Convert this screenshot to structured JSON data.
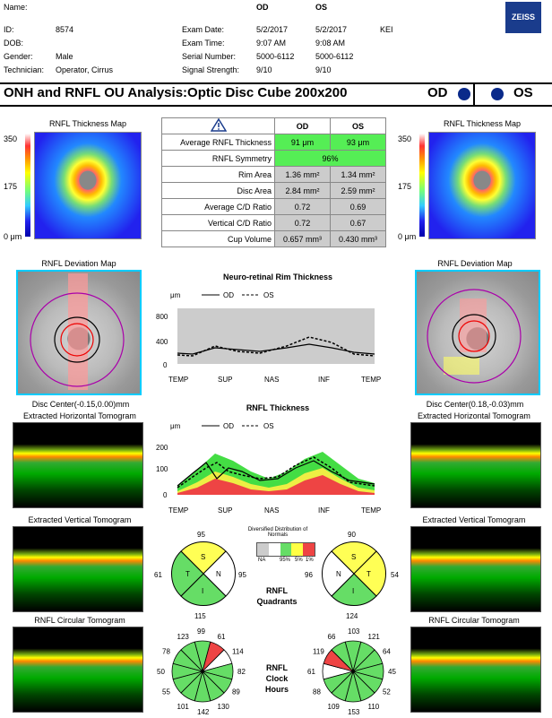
{
  "header": {
    "name_label": "Name:",
    "id_label": "ID:",
    "id_value": "8574",
    "dob_label": "DOB:",
    "gender_label": "Gender:",
    "gender_value": "Male",
    "tech_label": "Technician:",
    "tech_value": "Operator, Cirrus",
    "col_od": "OD",
    "col_os": "OS",
    "exam_date_label": "Exam Date:",
    "exam_date_od": "5/2/2017",
    "exam_date_os": "5/2/2017",
    "exam_time_label": "Exam Time:",
    "exam_time_od": "9:07 AM",
    "exam_time_os": "9:08 AM",
    "serial_label": "Serial Number:",
    "serial_od": "5000-6112",
    "serial_os": "5000-6112",
    "signal_label": "Signal Strength:",
    "signal_od": "9/10",
    "signal_os": "9/10",
    "kei": "KEI",
    "logo": "ZEISS"
  },
  "title": "ONH and RNFL OU Analysis:Optic Disc Cube 200x200",
  "od_label": "OD",
  "os_label": "OS",
  "maps": {
    "thickness_title": "RNFL Thickness Map",
    "scale_top": "350",
    "scale_mid": "175",
    "scale_bot": "0 μm",
    "deviation_title": "RNFL Deviation Map",
    "disc_center_od": "Disc Center(-0.15,0.00)mm",
    "disc_center_os": "Disc Center(0.18,-0.03)mm",
    "horiz_tomo": "Extracted Horizontal Tomogram",
    "vert_tomo": "Extracted Vertical Tomogram",
    "circ_tomo": "RNFL Circular Tomogram"
  },
  "table": {
    "head_od": "OD",
    "head_os": "OS",
    "rows": [
      {
        "label": "Average RNFL Thickness",
        "od": "91 μm",
        "os": "93 μm"
      },
      {
        "label": "RNFL Symmetry",
        "both": "96%"
      },
      {
        "label": "Rim Area",
        "od": "1.36 mm²",
        "os": "1.34 mm²"
      },
      {
        "label": "Disc Area",
        "od": "2.84 mm²",
        "os": "2.59 mm²"
      },
      {
        "label": "Average C/D Ratio",
        "od": "0.72",
        "os": "0.69"
      },
      {
        "label": "Vertical C/D Ratio",
        "od": "0.72",
        "os": "0.67"
      },
      {
        "label": "Cup Volume",
        "od": "0.657 mm³",
        "os": "0.430 mm³"
      }
    ]
  },
  "rim_chart": {
    "title": "Neuro-retinal Rim Thickness",
    "unit": "μm",
    "legend_od": "OD",
    "legend_os": "OS",
    "yticks": [
      "800",
      "400",
      "0"
    ],
    "xticks": [
      "TEMP",
      "SUP",
      "NAS",
      "INF",
      "TEMP"
    ]
  },
  "rnfl_chart": {
    "title": "RNFL Thickness",
    "unit": "μm",
    "legend_od": "OD",
    "legend_os": "OS",
    "yticks": [
      "200",
      "100",
      "0"
    ],
    "xticks": [
      "TEMP",
      "SUP",
      "NAS",
      "INF",
      "TEMP"
    ]
  },
  "distribution": {
    "title": "Diversified Distribution of Normals",
    "labels": [
      "NA",
      "95%",
      "5%",
      "1%"
    ],
    "colors": [
      "#cccccc",
      "#ffffff",
      "#66dd66",
      "#ffff44",
      "#ee4444"
    ]
  },
  "quadrants": {
    "title_line1": "RNFL",
    "title_line2": "Quadrants",
    "od": {
      "top": "95",
      "left": "61",
      "right": "95",
      "bottom": "115",
      "s": "S",
      "t": "T",
      "n": "N",
      "i": "I"
    },
    "os": {
      "top": "90",
      "left": "96",
      "right": "54",
      "bottom": "124",
      "s": "S",
      "t": "T",
      "n": "N",
      "i": "I"
    }
  },
  "clock": {
    "title_line1": "RNFL",
    "title_line2": "Clock",
    "title_line3": "Hours",
    "od": [
      "99",
      "61",
      "114",
      "82",
      "89",
      "130",
      "142",
      "101",
      "55",
      "50",
      "78",
      "123"
    ],
    "os": [
      "103",
      "121",
      "64",
      "45",
      "52",
      "110",
      "153",
      "109",
      "88",
      "61",
      "119",
      "66"
    ]
  },
  "colors": {
    "od_dot": "#0a2a8a",
    "os_dot": "#0a2a8a"
  }
}
